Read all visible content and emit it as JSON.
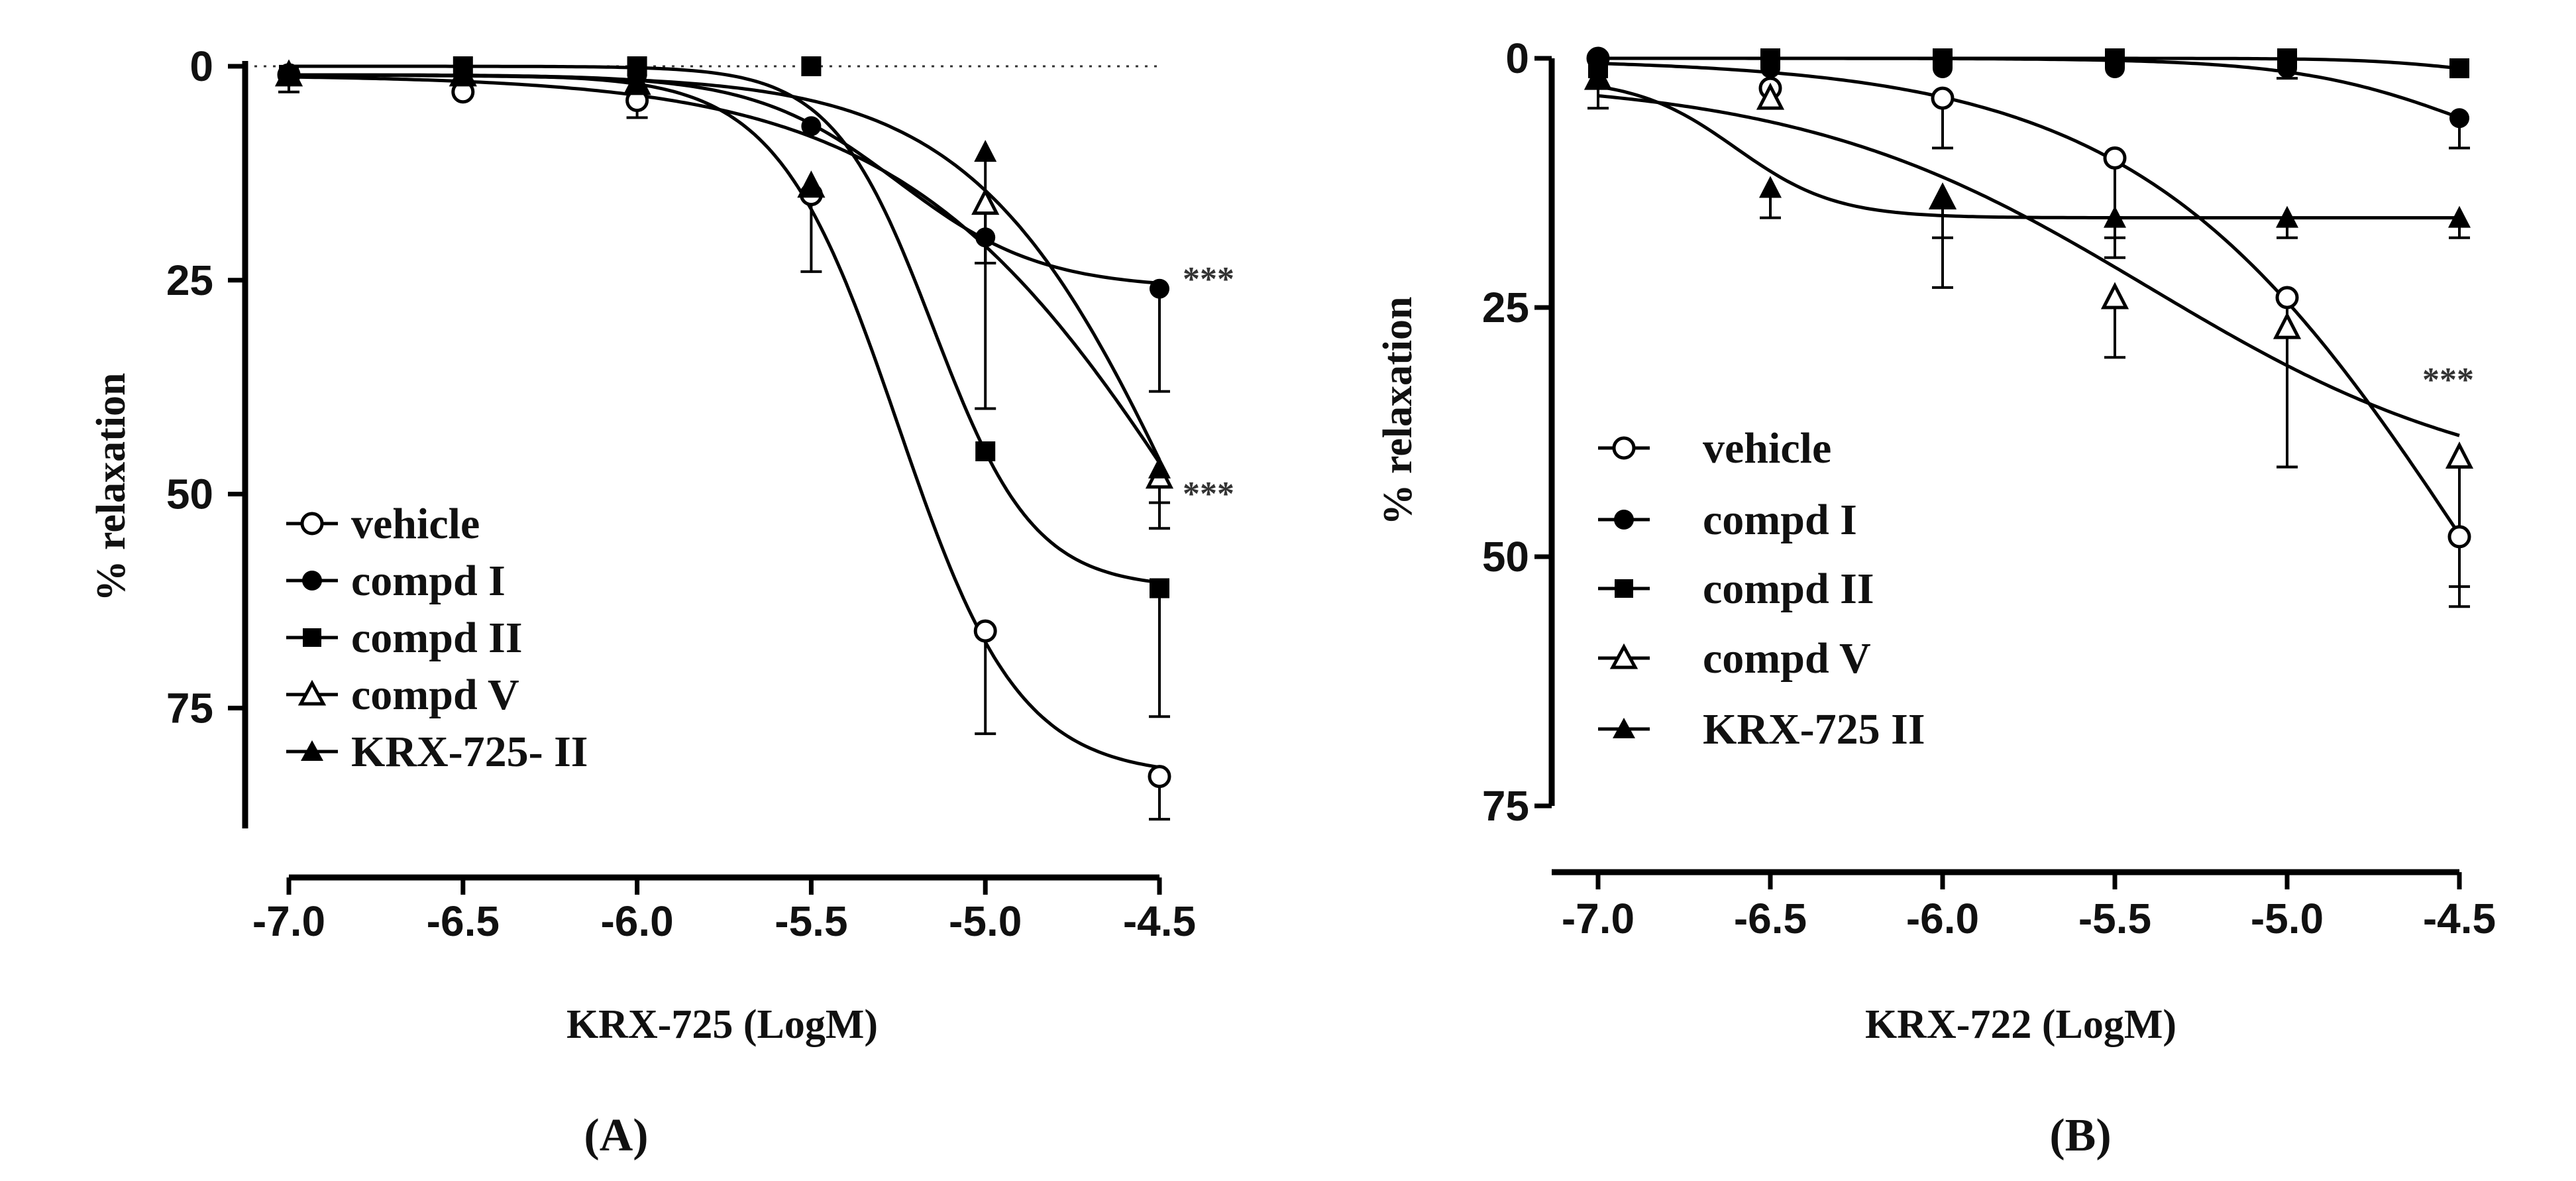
{
  "chart_data": [
    {
      "type": "line",
      "panel_label": "(A)",
      "xlabel": "KRX-725 (LogM)",
      "ylabel": "% relaxation",
      "xlim": [
        -7.0,
        -4.5
      ],
      "ylim": [
        0,
        90
      ],
      "y_inverted": true,
      "x_ticks": [
        "-7.0",
        "-6.5",
        "-6.0",
        "-5.5",
        "-5.0",
        "-4.5"
      ],
      "y_ticks": [
        "0",
        "25",
        "50",
        "75"
      ],
      "x": [
        -7.0,
        -6.5,
        -6.0,
        -5.5,
        -5.0,
        -4.5
      ],
      "series": [
        {
          "name": "vehicle",
          "marker": "open-circle",
          "values": [
            1,
            3,
            4,
            15,
            66,
            83
          ],
          "errors": [
            2,
            0,
            2,
            9,
            12,
            5
          ]
        },
        {
          "name": "compd I",
          "marker": "filled-circle",
          "values": [
            1,
            1,
            1,
            7,
            20,
            26
          ],
          "errors": [
            0,
            0,
            0,
            0,
            20,
            12
          ]
        },
        {
          "name": "compd II",
          "marker": "filled-square",
          "values": [
            1,
            0,
            0,
            0,
            45,
            61
          ],
          "errors": [
            0,
            0,
            0,
            0,
            0,
            15
          ]
        },
        {
          "name": "compd V",
          "marker": "open-triangle",
          "values": [
            1,
            1,
            2,
            14,
            16,
            48
          ],
          "errors": [
            0,
            0,
            0,
            0,
            7,
            6
          ]
        },
        {
          "name": "KRX-725- II",
          "marker": "filled-triangle",
          "values": [
            1,
            1,
            2,
            14,
            10,
            47
          ],
          "errors": [
            0,
            0,
            0,
            0,
            13,
            4
          ]
        }
      ],
      "annotations": [
        {
          "text": "***",
          "near_series": "compd I"
        },
        {
          "text": "***",
          "near_series": "compd V"
        }
      ]
    },
    {
      "type": "line",
      "panel_label": "(B)",
      "xlabel": "KRX-722 (LogM)",
      "ylabel": "% relaxation",
      "xlim": [
        -7.0,
        -4.5
      ],
      "ylim": [
        0,
        75
      ],
      "y_inverted": true,
      "x_ticks": [
        "-7.0",
        "-6.5",
        "-6.0",
        "-5.5",
        "-5.0",
        "-4.5"
      ],
      "y_ticks": [
        "0",
        "25",
        "50",
        "75"
      ],
      "x": [
        -7.0,
        -6.5,
        -6.0,
        -5.5,
        -5.0,
        -4.5
      ],
      "series": [
        {
          "name": "vehicle",
          "marker": "open-circle",
          "values": [
            0,
            3,
            4,
            10,
            24,
            48
          ],
          "errors": [
            0,
            0,
            5,
            8,
            17,
            7
          ]
        },
        {
          "name": "compd I",
          "marker": "filled-circle",
          "values": [
            0,
            1,
            1,
            1,
            1,
            6
          ],
          "errors": [
            0,
            0,
            0,
            0,
            1,
            3
          ]
        },
        {
          "name": "compd II",
          "marker": "filled-square",
          "values": [
            1,
            0,
            0,
            0,
            0,
            1
          ],
          "errors": [
            0,
            0,
            0,
            0,
            0,
            0
          ]
        },
        {
          "name": "compd V",
          "marker": "open-triangle",
          "values": [
            2,
            4,
            14,
            24,
            27,
            40
          ],
          "errors": [
            3,
            0,
            9,
            6,
            14,
            13
          ]
        },
        {
          "name": "KRX-725 II",
          "marker": "filled-triangle",
          "values": [
            2,
            13,
            14,
            16,
            16,
            16
          ],
          "errors": [
            0,
            3,
            4,
            4,
            2,
            2
          ]
        }
      ],
      "annotations": [
        {
          "text": "***",
          "near_series": "compd V"
        }
      ]
    }
  ]
}
